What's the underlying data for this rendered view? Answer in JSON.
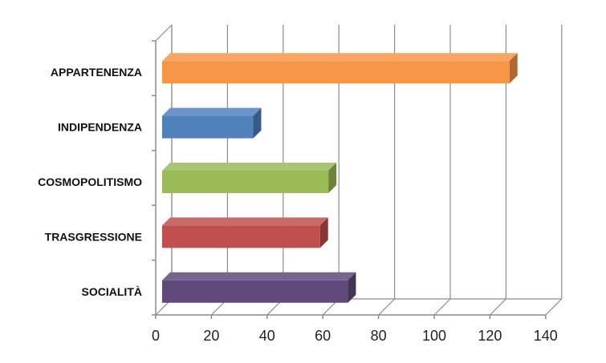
{
  "chart_data": {
    "type": "bar",
    "orientation": "horizontal",
    "style": "3d",
    "categories": [
      "APPARTENENZA",
      "INDIPENDENZA",
      "COSMOPOLITISMO",
      "TRASGRESSIONE",
      "SOCIALITÀ"
    ],
    "values": [
      127,
      35,
      62,
      59,
      69
    ],
    "colors": [
      "#F79646",
      "#4F81BD",
      "#9BBB59",
      "#C0504D",
      "#604A7B"
    ],
    "xlim": [
      0,
      140
    ],
    "xticks": [
      "0",
      "20",
      "40",
      "60",
      "80",
      "100",
      "120",
      "140"
    ],
    "grid": true,
    "legend": "none",
    "title": "",
    "xlabel": "",
    "ylabel": ""
  }
}
